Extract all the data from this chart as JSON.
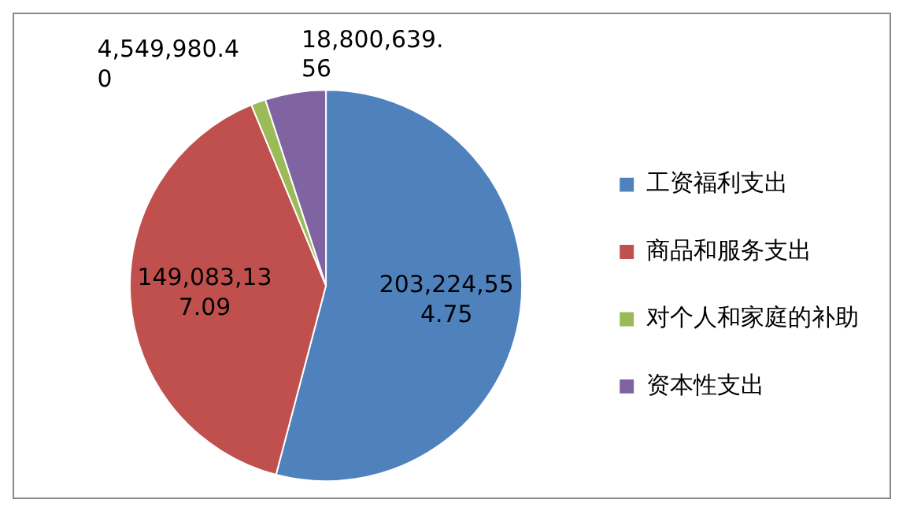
{
  "chart_data": {
    "type": "pie",
    "categories": [
      "工资福利支出",
      "商品和服务支出",
      "对个人和家庭的补助",
      "资本性支出"
    ],
    "values": [
      203224554.75,
      149083137.09,
      4549980.4,
      18800639.56
    ],
    "colors": [
      "#4f81bd",
      "#c0504d",
      "#9bbb59",
      "#8064a2"
    ],
    "value_labels": [
      "203,224,554.75",
      "149,083,137.09",
      "4,549,980.40",
      "18,800,639.56"
    ],
    "legend": "right"
  }
}
